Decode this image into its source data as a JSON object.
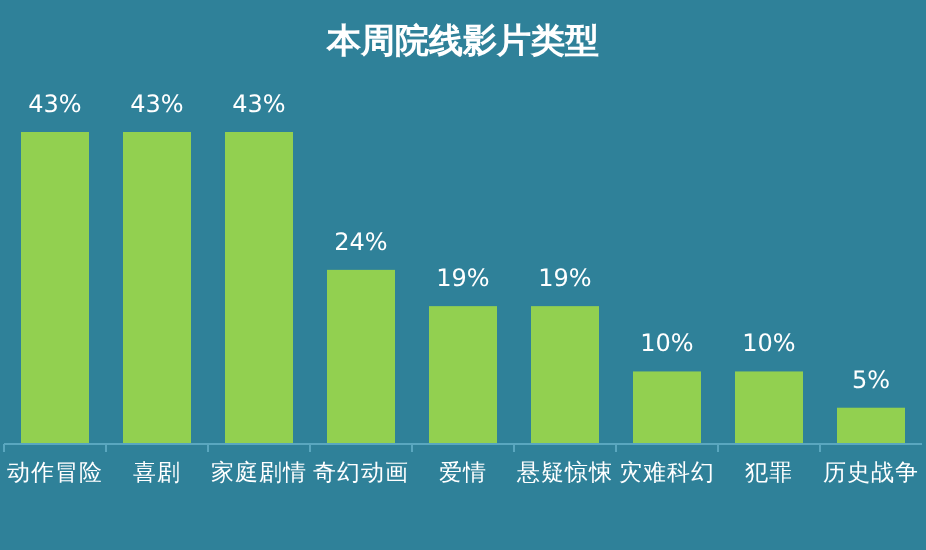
{
  "chart_data": {
    "type": "bar",
    "title": "本周院线影片类型",
    "categories": [
      "动作冒险",
      "喜剧",
      "家庭剧情",
      "奇幻动画",
      "爱情",
      "悬疑惊悚",
      "灾难科幻",
      "犯罪",
      "历史战争"
    ],
    "values": [
      43,
      43,
      43,
      24,
      19,
      19,
      10,
      10,
      5
    ],
    "color": "#92d050",
    "value_labels": [
      "43%",
      "43%",
      "43%",
      "24%",
      "19%",
      "19%",
      "10%",
      "10%",
      "5%"
    ]
  }
}
